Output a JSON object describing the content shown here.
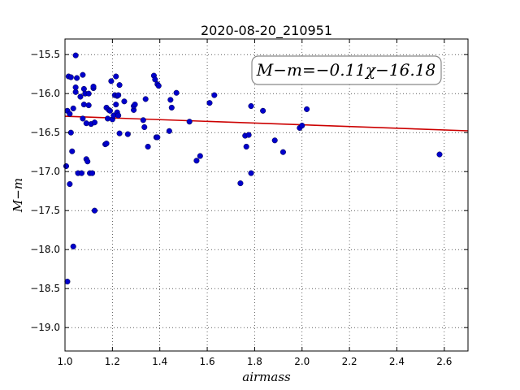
{
  "chart_data": {
    "type": "scatter",
    "title": "2020-08-20_210951",
    "xlabel": "airmass",
    "ylabel": "M−m",
    "xlim": [
      1.0,
      2.7
    ],
    "ylim": [
      -15.3,
      -19.3
    ],
    "y_inverted": true,
    "x_ticks": [
      1.0,
      1.2,
      1.4,
      1.6,
      1.8,
      2.0,
      2.2,
      2.4,
      2.6
    ],
    "x_tick_labels": [
      "1.0",
      "1.2",
      "1.4",
      "1.6",
      "1.8",
      "2.0",
      "2.2",
      "2.4",
      "2.6"
    ],
    "y_ticks": [
      -15.5,
      -16.0,
      -16.5,
      -17.0,
      -17.5,
      -18.0,
      -18.5,
      -19.0
    ],
    "y_tick_labels": [
      "−15.5",
      "−16.0",
      "−16.5",
      "−17.0",
      "−17.5",
      "−18.0",
      "−18.5",
      "−19.0"
    ],
    "grid": true,
    "annotation": "M−m=−0.11χ−16.18",
    "marker_color": "#0000cc",
    "fit_color": "#cc0000",
    "fit": {
      "slope": -0.11,
      "intercept": -16.18,
      "x_range": [
        1.0,
        2.7
      ]
    },
    "points": [
      [
        1.005,
        -16.93
      ],
      [
        1.01,
        -16.22
      ],
      [
        1.01,
        -18.41
      ],
      [
        1.015,
        -15.78
      ],
      [
        1.02,
        -17.16
      ],
      [
        1.02,
        -16.26
      ],
      [
        1.025,
        -15.79
      ],
      [
        1.025,
        -16.5
      ],
      [
        1.03,
        -16.74
      ],
      [
        1.035,
        -16.19
      ],
      [
        1.035,
        -17.96
      ],
      [
        1.045,
        -15.51
      ],
      [
        1.045,
        -15.92
      ],
      [
        1.045,
        -15.98
      ],
      [
        1.05,
        -15.8
      ],
      [
        1.055,
        -17.02
      ],
      [
        1.065,
        -16.04
      ],
      [
        1.07,
        -17.02
      ],
      [
        1.075,
        -15.76
      ],
      [
        1.075,
        -16.32
      ],
      [
        1.08,
        -16.14
      ],
      [
        1.08,
        -15.94
      ],
      [
        1.085,
        -16.0
      ],
      [
        1.09,
        -16.38
      ],
      [
        1.09,
        -16.84
      ],
      [
        1.095,
        -16.87
      ],
      [
        1.1,
        -16.15
      ],
      [
        1.1,
        -16.0
      ],
      [
        1.105,
        -17.02
      ],
      [
        1.11,
        -16.39
      ],
      [
        1.115,
        -17.02
      ],
      [
        1.12,
        -15.93
      ],
      [
        1.12,
        -15.91
      ],
      [
        1.125,
        -16.37
      ],
      [
        1.125,
        -17.5
      ],
      [
        1.17,
        -16.65
      ],
      [
        1.175,
        -16.64
      ],
      [
        1.175,
        -16.18
      ],
      [
        1.18,
        -16.32
      ],
      [
        1.185,
        -16.21
      ],
      [
        1.19,
        -16.22
      ],
      [
        1.195,
        -15.84
      ],
      [
        1.2,
        -16.33
      ],
      [
        1.205,
        -16.28
      ],
      [
        1.21,
        -16.02
      ],
      [
        1.215,
        -16.14
      ],
      [
        1.215,
        -15.78
      ],
      [
        1.22,
        -16.03
      ],
      [
        1.22,
        -16.24
      ],
      [
        1.225,
        -16.28
      ],
      [
        1.225,
        -16.02
      ],
      [
        1.23,
        -15.89
      ],
      [
        1.23,
        -16.51
      ],
      [
        1.25,
        -16.1
      ],
      [
        1.265,
        -16.52
      ],
      [
        1.29,
        -16.21
      ],
      [
        1.29,
        -16.16
      ],
      [
        1.295,
        -16.14
      ],
      [
        1.33,
        -16.34
      ],
      [
        1.335,
        -16.43
      ],
      [
        1.34,
        -16.07
      ],
      [
        1.35,
        -16.68
      ],
      [
        1.375,
        -15.77
      ],
      [
        1.38,
        -15.82
      ],
      [
        1.385,
        -16.56
      ],
      [
        1.39,
        -16.56
      ],
      [
        1.39,
        -15.88
      ],
      [
        1.395,
        -15.9
      ],
      [
        1.44,
        -16.48
      ],
      [
        1.445,
        -16.08
      ],
      [
        1.45,
        -16.18
      ],
      [
        1.47,
        -15.99
      ],
      [
        1.525,
        -16.36
      ],
      [
        1.555,
        -16.86
      ],
      [
        1.57,
        -16.8
      ],
      [
        1.61,
        -16.12
      ],
      [
        1.63,
        -16.02
      ],
      [
        1.74,
        -17.15
      ],
      [
        1.76,
        -16.54
      ],
      [
        1.765,
        -16.68
      ],
      [
        1.775,
        -16.53
      ],
      [
        1.785,
        -17.02
      ],
      [
        1.785,
        -16.16
      ],
      [
        1.835,
        -16.22
      ],
      [
        1.885,
        -16.6
      ],
      [
        1.92,
        -16.75
      ],
      [
        1.99,
        -16.44
      ],
      [
        2.0,
        -16.41
      ],
      [
        2.02,
        -16.2
      ],
      [
        2.58,
        -16.78
      ]
    ]
  }
}
